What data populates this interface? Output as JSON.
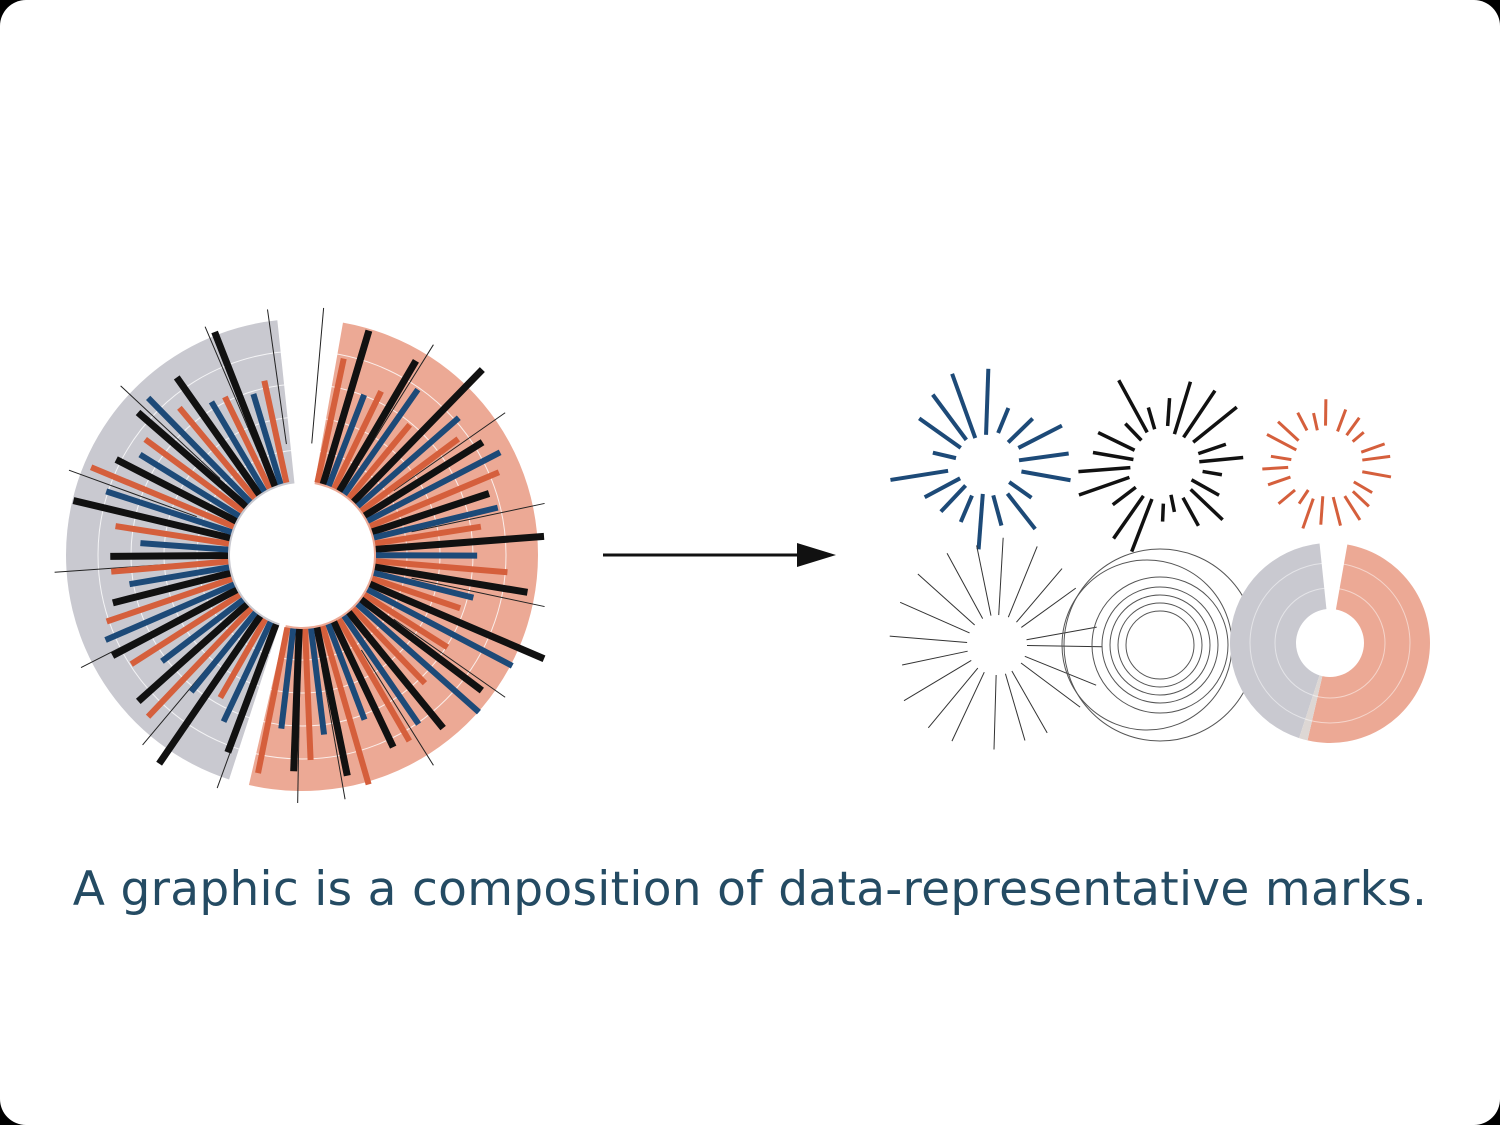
{
  "caption": "A graphic is a composition of data-representative marks.",
  "colors": {
    "blue": "#1d4a78",
    "orange": "#d55f3c",
    "black": "#111111",
    "gray_wedge": "#c9c9d0",
    "salmon_wedge": "#eca995",
    "caption": "#244b63",
    "background": "#ffffff"
  },
  "icons": {
    "arrow": "right-arrow-icon"
  }
}
